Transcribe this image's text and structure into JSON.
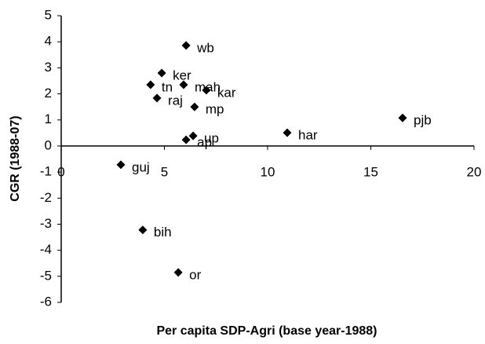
{
  "chart_data": {
    "type": "scatter",
    "x_label": "Per capita SDP-Agri (base year-1988)",
    "y_label": "CGR (1988-07)",
    "labels": [
      "wb",
      "ker",
      "tn",
      "mah",
      "kar",
      "raj",
      "mp",
      "up",
      "ap",
      "har",
      "pjb",
      "guj",
      "bih",
      "or"
    ],
    "x": [
      6.05,
      4.87,
      4.33,
      5.93,
      7.03,
      4.64,
      6.46,
      6.39,
      6.05,
      10.95,
      16.54,
      2.89,
      3.95,
      5.67
    ],
    "values": [
      3.86,
      2.8,
      2.35,
      2.35,
      2.14,
      1.84,
      1.5,
      0.39,
      0.24,
      0.51,
      1.08,
      -0.72,
      -3.22,
      -4.85
    ],
    "color": "#000000",
    "xlim": [
      0,
      20
    ],
    "xticks": [
      0,
      5,
      10,
      15,
      20
    ],
    "ylim": [
      -6,
      5
    ],
    "yticks": [
      -6,
      -5,
      -4,
      -3,
      -2,
      -1,
      0,
      1,
      2,
      3,
      4,
      5
    ]
  }
}
